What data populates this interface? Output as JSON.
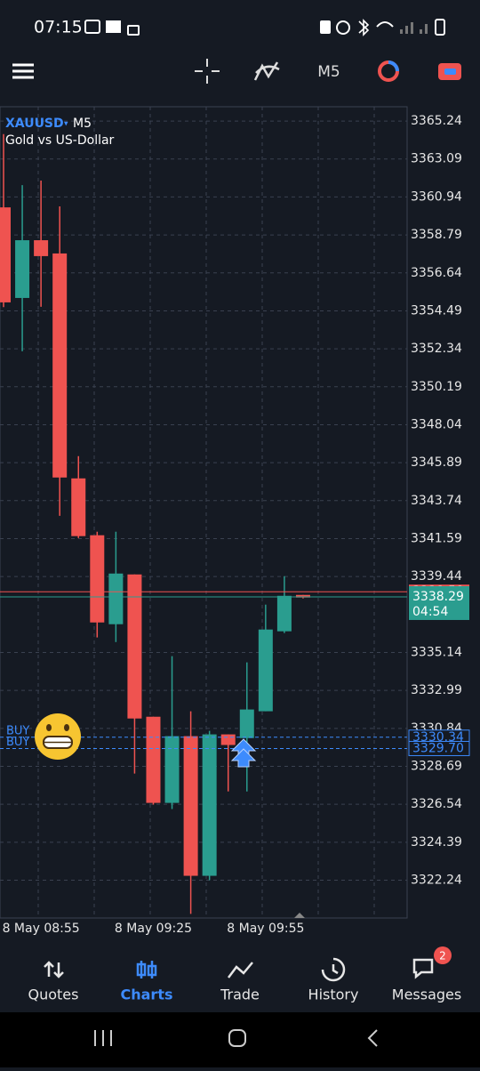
{
  "status_bar": {
    "time": "07:15"
  },
  "toolbar": {
    "timeframe": "M5"
  },
  "chart_data": {
    "type": "candlestick",
    "symbol": "XAUUSD",
    "timeframe": "M5",
    "description": "Gold vs US-Dollar",
    "categories": [
      null,
      null,
      "8 May 08:55",
      null,
      null,
      null,
      null,
      null,
      "8 May 09:25",
      null,
      null,
      null,
      null,
      null,
      "8 May 09:55",
      null,
      null
    ],
    "open": [
      3360.35,
      3355.22,
      3358.49,
      3357.74,
      3345.0,
      3341.78,
      3336.74,
      3339.56,
      3331.5,
      3326.62,
      3330.4,
      3322.49,
      3330.5,
      3330.29,
      3331.81,
      3336.34,
      3338.4
    ],
    "high": [
      3364.5,
      3361.61,
      3361.87,
      3360.41,
      3346.26,
      3341.98,
      3341.98,
      3339.56,
      3331.5,
      3334.93,
      3331.81,
      3330.7,
      3330.5,
      3334.58,
      3337.85,
      3339.46,
      3338.4
    ],
    "low": [
      3354.7,
      3352.2,
      3354.72,
      3342.88,
      3341.62,
      3335.99,
      3335.73,
      3328.28,
      3326.52,
      3326.27,
      3320.33,
      3322.24,
      3327.27,
      3327.27,
      3331.81,
      3336.24,
      3338.2
    ],
    "close": [
      3354.97,
      3358.49,
      3357.59,
      3345.05,
      3341.73,
      3336.84,
      3339.61,
      3331.4,
      3326.62,
      3330.4,
      3322.49,
      3330.5,
      3329.9,
      3331.91,
      3336.44,
      3338.35,
      3338.25
    ],
    "up_color": "#2a9d8f",
    "down_color": "#ef5350",
    "ylim": [
      3320.1,
      3366.05
    ],
    "yticks": [
      3365.24,
      3363.09,
      3360.94,
      3358.79,
      3356.64,
      3354.49,
      3352.34,
      3350.19,
      3348.04,
      3345.89,
      3343.74,
      3341.59,
      3339.44,
      3335.14,
      3332.99,
      3330.84,
      3328.69,
      3326.54,
      3324.39,
      3322.24
    ],
    "grid": true,
    "bid_line": {
      "value": 3338.58,
      "color": "#ef5350"
    },
    "current_price": {
      "value": 3338.29,
      "countdown": "04:54",
      "color": "#2a9d8f"
    },
    "orders": [
      {
        "label": "BUY",
        "price": 3330.34
      },
      {
        "label": "BUY",
        "price": {
          "value": 3329.7,
          "label": "3329.70"
        }
      }
    ],
    "order_color": "#3d8bfd"
  },
  "bottom_nav": {
    "items": [
      "Quotes",
      "Charts",
      "Trade",
      "History",
      "Messages"
    ],
    "active": "Charts",
    "badge": "2"
  }
}
